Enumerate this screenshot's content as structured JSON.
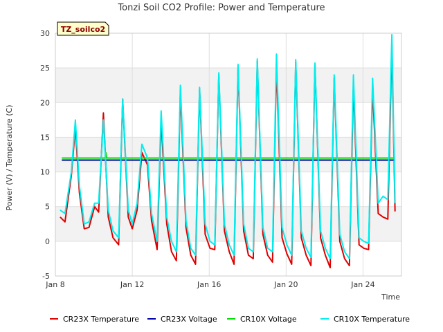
{
  "chart_data": {
    "type": "line",
    "title": "Tonzi Soil CO2 Profile: Power and Temperature",
    "badge": "TZ_soilco2",
    "xlabel": "Time",
    "ylabel": "Power (V) / Temperature (C)",
    "ylim": [
      -5,
      30
    ],
    "xlim": [
      "2024-01-08",
      "2024-01-26"
    ],
    "y_ticks": [
      -5,
      0,
      5,
      10,
      15,
      20,
      25,
      30
    ],
    "x_ticks": [
      {
        "date": "2024-01-08",
        "label": "Jan 8"
      },
      {
        "date": "2024-01-12",
        "label": "Jan 12"
      },
      {
        "date": "2024-01-16",
        "label": "Jan 16"
      },
      {
        "date": "2024-01-20",
        "label": "Jan 20"
      },
      {
        "date": "2024-01-24",
        "label": "Jan 24"
      }
    ],
    "grid": true,
    "legend_position": "bottom",
    "series": [
      {
        "name": "CR23X Temperature",
        "color": "#dd0000",
        "x": [
          "2024-01-08T06:00",
          "2024-01-08T12:00",
          "2024-01-08T20:00",
          "2024-01-09T01:00",
          "2024-01-09T06:00",
          "2024-01-09T12:00",
          "2024-01-09T18:00",
          "2024-01-10T01:00",
          "2024-01-10T06:00",
          "2024-01-10T12:00",
          "2024-01-10T18:00",
          "2024-01-11T00:00",
          "2024-01-11T07:00",
          "2024-01-11T12:00",
          "2024-01-11T19:00",
          "2024-01-12T00:00",
          "2024-01-12T06:00",
          "2024-01-12T12:00",
          "2024-01-12T19:00",
          "2024-01-13T00:00",
          "2024-01-13T07:00",
          "2024-01-13T12:00",
          "2024-01-13T19:00",
          "2024-01-14T01:00",
          "2024-01-14T07:00",
          "2024-01-14T12:00",
          "2024-01-14T19:00",
          "2024-01-15T01:00",
          "2024-01-15T07:00",
          "2024-01-15T12:00",
          "2024-01-15T19:00",
          "2024-01-16T01:00",
          "2024-01-16T07:00",
          "2024-01-16T12:00",
          "2024-01-16T19:00",
          "2024-01-17T01:00",
          "2024-01-17T07:00",
          "2024-01-17T12:00",
          "2024-01-17T19:00",
          "2024-01-18T01:00",
          "2024-01-18T07:00",
          "2024-01-18T12:00",
          "2024-01-18T19:00",
          "2024-01-19T01:00",
          "2024-01-19T07:00",
          "2024-01-19T12:00",
          "2024-01-19T19:00",
          "2024-01-20T01:00",
          "2024-01-20T07:00",
          "2024-01-20T12:00",
          "2024-01-20T19:00",
          "2024-01-21T01:00",
          "2024-01-21T07:00",
          "2024-01-21T12:00",
          "2024-01-21T19:00",
          "2024-01-22T01:00",
          "2024-01-22T07:00",
          "2024-01-22T12:00",
          "2024-01-22T19:00",
          "2024-01-23T01:00",
          "2024-01-23T07:00",
          "2024-01-23T12:00",
          "2024-01-23T19:00",
          "2024-01-24T01:00",
          "2024-01-24T07:00",
          "2024-01-24T12:00",
          "2024-01-24T19:00",
          "2024-01-25T01:00",
          "2024-01-25T07:00",
          "2024-01-25T12:00",
          "2024-01-25T16:00"
        ],
        "values": [
          3.5,
          2.8,
          9.5,
          16.5,
          7.0,
          1.8,
          2.0,
          5.0,
          4.2,
          18.5,
          3.5,
          0.5,
          -0.5,
          20.5,
          3.5,
          1.8,
          4.5,
          12.8,
          11.0,
          3.0,
          -1.2,
          17.5,
          2.5,
          -1.5,
          -2.8,
          21.5,
          2.0,
          -2.0,
          -3.3,
          22.0,
          1.0,
          -1.0,
          -1.2,
          24.0,
          1.5,
          -1.5,
          -3.3,
          25.0,
          1.5,
          -2.0,
          -2.5,
          26.0,
          1.0,
          -2.0,
          -3.0,
          25.5,
          0.5,
          -1.8,
          -3.3,
          25.8,
          0.5,
          -2.0,
          -3.5,
          25.5,
          0.5,
          -2.0,
          -3.8,
          23.5,
          0.0,
          -2.5,
          -3.5,
          22.5,
          -0.5,
          -1.0,
          -1.2,
          22.0,
          4.0,
          3.5,
          3.2,
          28.5,
          4.3
        ]
      },
      {
        "name": "CR23X Voltage",
        "color": "#0000aa",
        "x": [
          "2024-01-08T08:00",
          "2024-01-25T16:00"
        ],
        "values": [
          11.7,
          11.7
        ]
      },
      {
        "name": "CR10X Voltage",
        "color": "#00dd00",
        "x": [
          "2024-01-08T08:00",
          "2024-01-10T14:00",
          "2024-01-10T15:00",
          "2024-01-10T16:00",
          "2024-01-25T16:00"
        ],
        "values": [
          12.0,
          12.0,
          12.8,
          12.0,
          12.0
        ]
      },
      {
        "name": "CR10X Temperature",
        "color": "#00eeee",
        "x": [
          "2024-01-08T06:00",
          "2024-01-08T12:00",
          "2024-01-08T20:00",
          "2024-01-09T01:00",
          "2024-01-09T06:00",
          "2024-01-09T12:00",
          "2024-01-09T18:00",
          "2024-01-10T01:00",
          "2024-01-10T06:00",
          "2024-01-10T12:00",
          "2024-01-10T18:00",
          "2024-01-11T00:00",
          "2024-01-11T07:00",
          "2024-01-11T12:00",
          "2024-01-11T19:00",
          "2024-01-12T00:00",
          "2024-01-12T06:00",
          "2024-01-12T12:00",
          "2024-01-12T19:00",
          "2024-01-13T00:00",
          "2024-01-13T07:00",
          "2024-01-13T12:00",
          "2024-01-13T19:00",
          "2024-01-14T01:00",
          "2024-01-14T07:00",
          "2024-01-14T12:00",
          "2024-01-14T19:00",
          "2024-01-15T01:00",
          "2024-01-15T07:00",
          "2024-01-15T12:00",
          "2024-01-15T19:00",
          "2024-01-16T01:00",
          "2024-01-16T07:00",
          "2024-01-16T12:00",
          "2024-01-16T19:00",
          "2024-01-17T01:00",
          "2024-01-17T07:00",
          "2024-01-17T12:00",
          "2024-01-17T19:00",
          "2024-01-18T01:00",
          "2024-01-18T07:00",
          "2024-01-18T12:00",
          "2024-01-18T19:00",
          "2024-01-19T01:00",
          "2024-01-19T07:00",
          "2024-01-19T12:00",
          "2024-01-19T19:00",
          "2024-01-20T01:00",
          "2024-01-20T07:00",
          "2024-01-20T12:00",
          "2024-01-20T19:00",
          "2024-01-21T01:00",
          "2024-01-21T07:00",
          "2024-01-21T12:00",
          "2024-01-21T19:00",
          "2024-01-22T01:00",
          "2024-01-22T07:00",
          "2024-01-22T12:00",
          "2024-01-22T19:00",
          "2024-01-23T01:00",
          "2024-01-23T07:00",
          "2024-01-23T12:00",
          "2024-01-23T19:00",
          "2024-01-24T01:00",
          "2024-01-24T07:00",
          "2024-01-24T12:00",
          "2024-01-24T19:00",
          "2024-01-25T01:00",
          "2024-01-25T07:00",
          "2024-01-25T12:00",
          "2024-01-25T16:00"
        ],
        "values": [
          4.5,
          4.0,
          10.0,
          17.5,
          8.0,
          2.5,
          2.8,
          5.5,
          5.5,
          17.5,
          4.5,
          1.5,
          0.5,
          20.5,
          4.5,
          2.5,
          5.5,
          14.0,
          12.0,
          4.0,
          0.0,
          18.8,
          3.5,
          0.0,
          -1.5,
          22.5,
          3.0,
          -1.0,
          -2.0,
          22.2,
          2.5,
          0.0,
          -0.5,
          24.3,
          2.5,
          -0.5,
          -2.0,
          25.5,
          2.5,
          -1.0,
          -1.5,
          26.3,
          2.0,
          -1.0,
          -1.5,
          27.0,
          2.0,
          -0.5,
          -2.0,
          26.2,
          1.5,
          -1.0,
          -2.3,
          25.7,
          1.5,
          -1.0,
          -2.5,
          24.0,
          1.0,
          -1.5,
          -2.5,
          24.0,
          0.5,
          0.0,
          -0.3,
          23.5,
          5.5,
          6.5,
          6.0,
          29.8,
          5.5
        ]
      }
    ]
  }
}
